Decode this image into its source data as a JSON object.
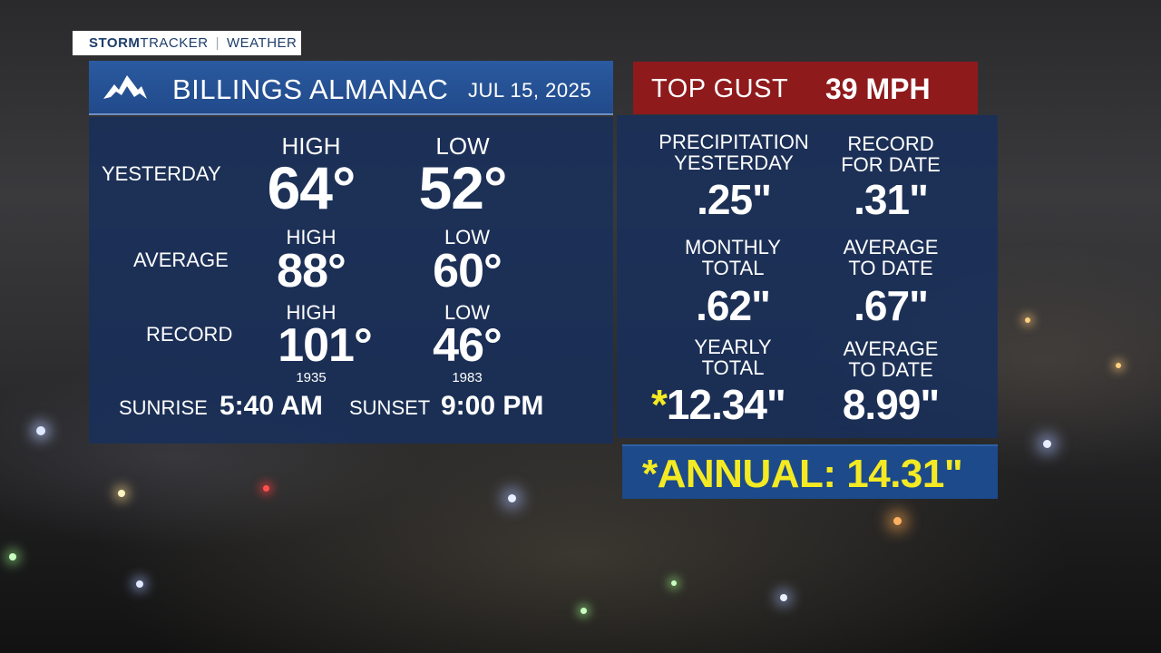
{
  "brand": {
    "storm": "STORM",
    "tracker": "TRACKER",
    "section": "WEATHER"
  },
  "header": {
    "title": "BILLINGS ALMANAC",
    "date": "JUL 15, 2025"
  },
  "gust": {
    "label": "TOP GUST",
    "value": "39 MPH"
  },
  "temps": {
    "yesterday": {
      "label": "YESTERDAY",
      "high_label": "HIGH",
      "low_label": "LOW",
      "high": "64°",
      "low": "52°"
    },
    "average": {
      "label": "AVERAGE",
      "high_label": "HIGH",
      "low_label": "LOW",
      "high": "88°",
      "low": "60°"
    },
    "record": {
      "label": "RECORD",
      "high_label": "HIGH",
      "low_label": "LOW",
      "high": "101°",
      "low": "46°",
      "high_year": "1935",
      "low_year": "1983"
    },
    "sunrise_label": "SUNRISE",
    "sunrise": "5:40 AM",
    "sunset_label": "SUNSET",
    "sunset": "9:00 PM"
  },
  "precip": {
    "yesterday": {
      "label1": "PRECIPITATION",
      "label2": "YESTERDAY",
      "value": ".25\""
    },
    "record": {
      "label1": "RECORD",
      "label2": "FOR DATE",
      "value": ".31\""
    },
    "monthly": {
      "label1": "MONTHLY",
      "label2": "TOTAL",
      "value": ".62\""
    },
    "monthly_avg": {
      "label1": "AVERAGE",
      "label2": "TO DATE",
      "value": ".67\""
    },
    "yearly": {
      "label1": "YEARLY",
      "label2": "TOTAL",
      "asterisk": "*",
      "value": "12.34\""
    },
    "yearly_avg": {
      "label1": "AVERAGE",
      "label2": "TO DATE",
      "value": "8.99\""
    }
  },
  "annual": {
    "text": "*ANNUAL: 14.31\""
  },
  "colors": {
    "panel": "#18305c",
    "header": "#2a5aa0",
    "gust": "#8e1a1c",
    "highlight": "#f4ea23"
  },
  "icons": {
    "logo": "mountain-logo-icon"
  }
}
